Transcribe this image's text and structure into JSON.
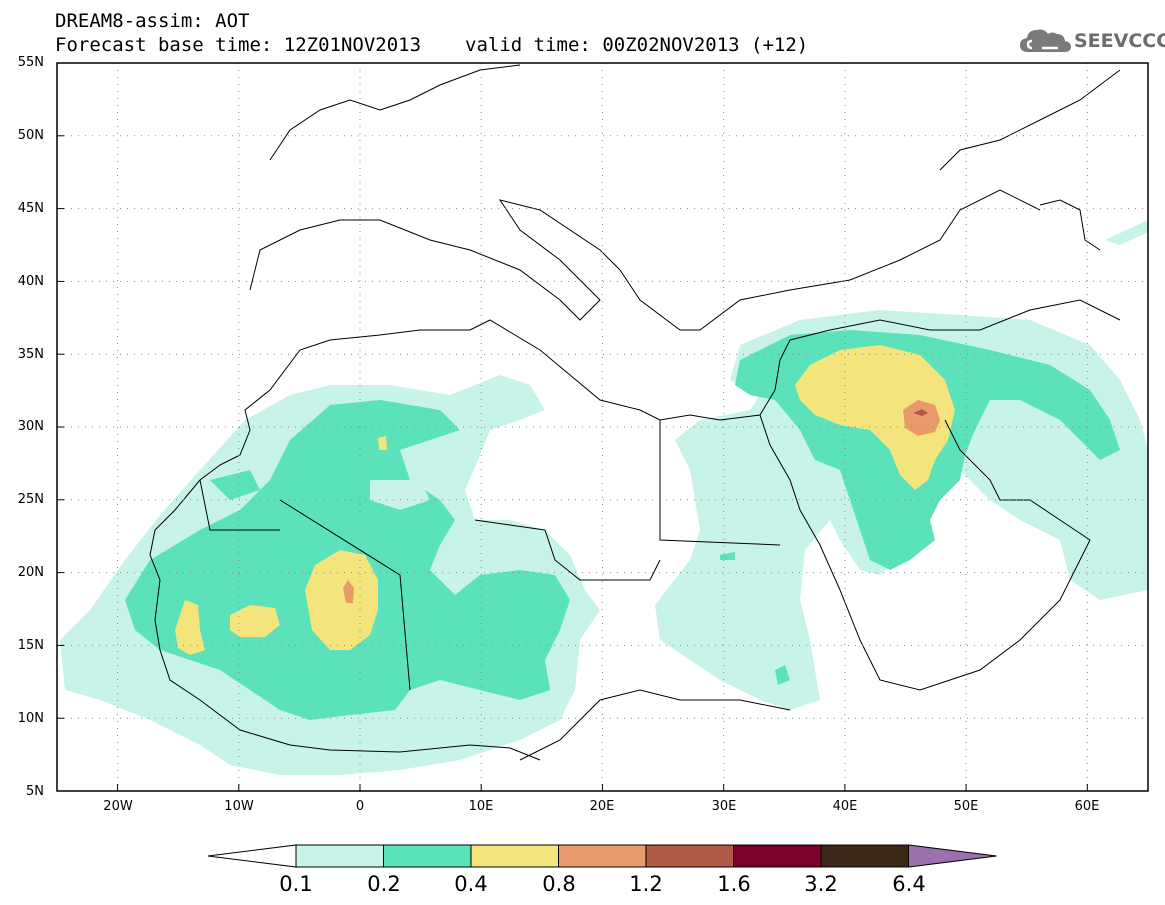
{
  "header": {
    "model_title": "DREAM8-assim: AOT",
    "base_time": "Forecast base time: 12Z01NOV2013",
    "valid_time": "valid time: 00Z02NOV2013 (+12)"
  },
  "logo": {
    "text": "SEEVCCC",
    "icon": "cloud-icon"
  },
  "map": {
    "lat_labels": [
      "55N",
      "50N",
      "45N",
      "40N",
      "35N",
      "30N",
      "25N",
      "20N",
      "15N",
      "10N",
      "5N"
    ],
    "lon_labels": [
      "20W",
      "10W",
      "0",
      "10E",
      "20E",
      "30E",
      "40E",
      "50E",
      "60E"
    ],
    "lat_range": [
      5,
      55
    ],
    "lon_range": [
      -25,
      65
    ],
    "gridlines": "dotted"
  },
  "colorbar": {
    "levels": [
      "0.1",
      "0.2",
      "0.4",
      "0.8",
      "1.2",
      "1.6",
      "3.2",
      "6.4"
    ],
    "colors": [
      "#ffffff",
      "#c8f3e8",
      "#5ce2bb",
      "#f4e47c",
      "#e99a6a",
      "#b25a48",
      "#7c0027",
      "#3b2716",
      "#9a71ad"
    ]
  }
}
